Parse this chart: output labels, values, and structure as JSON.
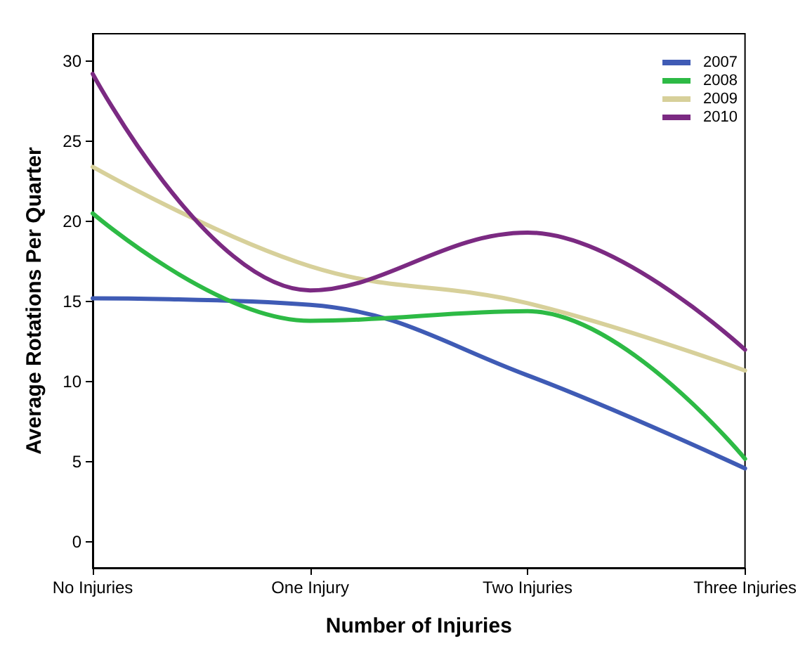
{
  "chart_data": {
    "type": "line",
    "xlabel": "Number of Injuries",
    "ylabel": "Average Rotations Per Quarter",
    "categories": [
      "No Injuries",
      "One Injury",
      "Two Injuries",
      "Three Injuries"
    ],
    "series": [
      {
        "name": "2007",
        "color": "#3f5bb5",
        "values": [
          15.2,
          14.8,
          10.4,
          4.6
        ]
      },
      {
        "name": "2008",
        "color": "#2dba45",
        "values": [
          20.5,
          13.8,
          14.4,
          5.2
        ]
      },
      {
        "name": "2009",
        "color": "#d7d09a",
        "values": [
          23.4,
          17.2,
          14.9,
          10.7
        ]
      },
      {
        "name": "2010",
        "color": "#7b2a82",
        "values": [
          29.2,
          15.7,
          19.3,
          12.0
        ]
      }
    ],
    "ylim": [
      -1.6,
      31.7
    ],
    "yticks": [
      0,
      5,
      10,
      15,
      20,
      25,
      30
    ],
    "grid": false,
    "legend": "top right",
    "marker": "none",
    "line_style": "solid"
  }
}
